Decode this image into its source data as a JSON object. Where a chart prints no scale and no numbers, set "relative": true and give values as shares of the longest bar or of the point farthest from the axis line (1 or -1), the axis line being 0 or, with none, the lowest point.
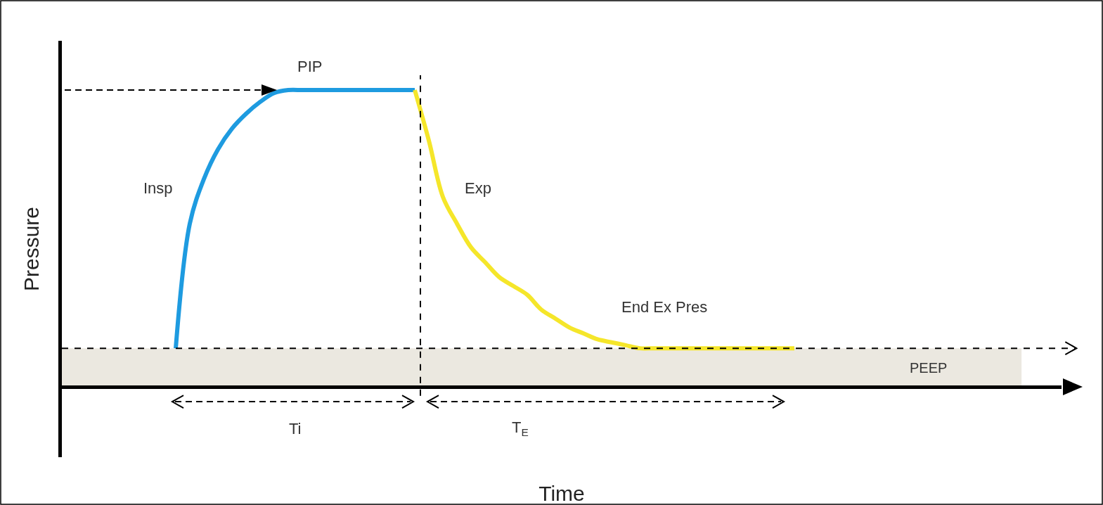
{
  "chart_data": {
    "type": "line",
    "relative": true,
    "xlabel": "Time",
    "ylabel": "Pressure",
    "categories": [
      null,
      null,
      null,
      null,
      null,
      null,
      null,
      null,
      null,
      null,
      null,
      null,
      null,
      null,
      null,
      null,
      null,
      null,
      null,
      null,
      null,
      null,
      null,
      null,
      null,
      null,
      null,
      null,
      null,
      null,
      null,
      null,
      null,
      null,
      null,
      null,
      null,
      null,
      null,
      null,
      null,
      null,
      null,
      null,
      null,
      null,
      null,
      null,
      null,
      null,
      null,
      null,
      null,
      null,
      null,
      null,
      null,
      null,
      null,
      null,
      null,
      null,
      null,
      null,
      null,
      null,
      null,
      null,
      null,
      null,
      null,
      null
    ],
    "series": [
      {
        "color": "#1e9be0",
        "values": [
          null,
          null,
          null,
          null,
          null,
          null,
          null,
          null,
          0.13,
          0.55,
          0.7,
          0.8,
          0.87,
          0.92,
          0.96,
          0.99,
          1,
          1,
          1,
          1,
          1,
          1,
          1,
          1,
          1,
          1,
          null,
          null,
          null,
          null,
          null,
          null,
          null,
          null,
          null,
          null,
          null,
          null,
          null,
          null,
          null,
          null,
          null,
          null,
          null,
          null,
          null,
          null,
          null,
          null,
          null,
          null,
          null,
          null,
          null,
          null,
          null,
          null,
          null,
          null,
          null,
          null,
          null,
          null,
          null,
          null,
          null,
          null,
          null,
          null,
          null,
          null
        ]
      },
      {
        "color": "#f5e62a",
        "values": [
          null,
          null,
          null,
          null,
          null,
          null,
          null,
          null,
          null,
          null,
          null,
          null,
          null,
          null,
          null,
          null,
          null,
          null,
          null,
          null,
          null,
          null,
          null,
          null,
          null,
          1,
          0.83,
          0.64,
          0.55,
          0.47,
          0.42,
          0.37,
          0.34,
          0.31,
          0.26,
          0.23,
          0.2,
          0.18,
          0.16,
          0.15,
          0.14,
          0.13,
          0.13,
          0.13,
          0.13,
          0.13,
          0.13,
          0.13,
          0.13,
          0.13,
          0.13,
          0.13,
          0.13,
          null,
          null,
          null,
          null,
          null,
          null,
          null,
          null,
          null,
          null,
          null,
          null,
          null,
          null,
          null,
          null,
          null,
          null,
          null
        ]
      }
    ],
    "bands": [
      {
        "axis": "y",
        "from": 0,
        "to": 0.13,
        "label": "PEEP",
        "color": "#ebe8e0"
      }
    ],
    "ref_lines": [
      {
        "axis": "y",
        "value": 0.13,
        "color": "#000000",
        "line_style": "dashed"
      }
    ],
    "annotations": [
      "PIP",
      "Insp",
      "Exp",
      "End Ex Pres",
      "Ti",
      "T$_{E}$"
    ],
    "grid": false,
    "marker": "none",
    "line_style": "solid"
  }
}
